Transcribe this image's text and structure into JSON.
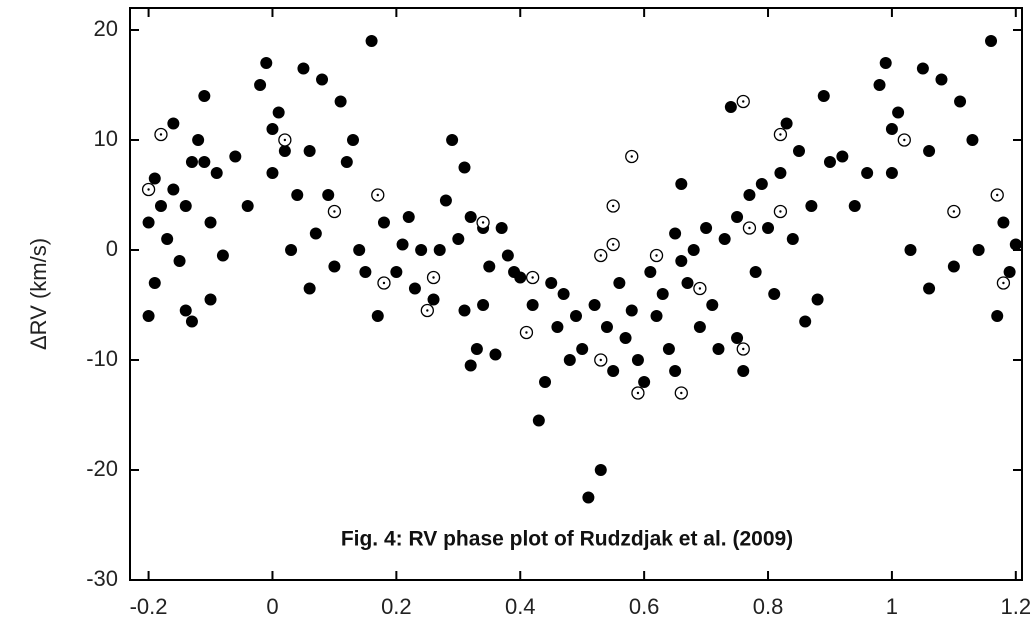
{
  "chart_data": {
    "type": "scatter",
    "annotation": "Fig. 4: RV phase plot of Rudzdjak et al. (2009)",
    "y_label": "ΔRV (km/s)",
    "xlim": [
      -0.23,
      1.21
    ],
    "ylim": [
      -30,
      22
    ],
    "xticks": [
      -0.2,
      0,
      0.2,
      0.4,
      0.6,
      0.8,
      1,
      1.2
    ],
    "yticks": [
      -30,
      -20,
      -10,
      0,
      10,
      20
    ],
    "series": [
      {
        "marker": "filled",
        "color": "#000000",
        "x": [
          -0.2,
          -0.2,
          -0.19,
          -0.19,
          -0.18,
          -0.17,
          -0.16,
          -0.16,
          -0.15,
          -0.14,
          -0.14,
          -0.13,
          -0.13,
          -0.12,
          -0.11,
          -0.11,
          -0.1,
          -0.1,
          -0.09,
          -0.08,
          -0.06,
          -0.04,
          -0.02,
          -0.01,
          0,
          0,
          0.01,
          0.02,
          0.03,
          0.04,
          0.05,
          0.06,
          0.06,
          0.07,
          0.08,
          0.09,
          0.1,
          0.11,
          0.12,
          0.13,
          0.14,
          0.15,
          0.16,
          0.17,
          0.17,
          0.18,
          0.2,
          0.21,
          0.22,
          0.23,
          0.24,
          0.26,
          0.27,
          0.28,
          0.29,
          0.3,
          0.31,
          0.31,
          0.32,
          0.32,
          0.33,
          0.34,
          0.34,
          0.35,
          0.36,
          0.37,
          0.38,
          0.39,
          0.4,
          0.42,
          0.43,
          0.44,
          0.45,
          0.46,
          0.47,
          0.48,
          0.49,
          0.5,
          0.51,
          0.52,
          0.53,
          0.54,
          0.55,
          0.56,
          0.57,
          0.58,
          0.59,
          0.6,
          0.61,
          0.62,
          0.63,
          0.64,
          0.65,
          0.65,
          0.66,
          0.66,
          0.67,
          0.68,
          0.69,
          0.7,
          0.71,
          0.72,
          0.73,
          0.74,
          0.75,
          0.75,
          0.76,
          0.77,
          0.78,
          0.79,
          0.8,
          0.81,
          0.82,
          0.83,
          0.84,
          0.85,
          0.86,
          0.87,
          0.88,
          0.89,
          0.9,
          0.92,
          0.94,
          0.96,
          0.98,
          0.99,
          1,
          1,
          1.01,
          1.03,
          1.05,
          1.06,
          1.06,
          1.08,
          1.1,
          1.11,
          1.13,
          1.14,
          1.16,
          1.17,
          1.17,
          1.18,
          1.19,
          1.2
        ],
        "values": [
          -6,
          2.5,
          -3,
          6.5,
          4,
          1,
          5.5,
          11.5,
          -1,
          4,
          -5.5,
          -6.5,
          8,
          10,
          14,
          8,
          -4.5,
          2.5,
          7,
          -0.5,
          8.5,
          4,
          15,
          17,
          11,
          7,
          12.5,
          9,
          0,
          5,
          16.5,
          9,
          -3.5,
          1.5,
          15.5,
          5,
          -1.5,
          13.5,
          8,
          10,
          0,
          -2,
          19,
          5,
          -6,
          2.5,
          -2,
          0.5,
          3,
          -3.5,
          0,
          -4.5,
          0,
          4.5,
          10,
          1,
          7.5,
          -5.5,
          3,
          -10.5,
          -9,
          -5,
          2,
          -1.5,
          -9.5,
          2,
          -0.5,
          -2,
          -2.5,
          -5,
          -15.5,
          -12,
          -3,
          -7,
          -4,
          -10,
          -6,
          -9,
          -22.5,
          -5,
          -20,
          -7,
          -11,
          -3,
          -8,
          -5.5,
          -10,
          -12,
          -2,
          -6,
          -4,
          -9,
          1.5,
          -11,
          6,
          -1,
          -3,
          0,
          -7,
          2,
          -5,
          -9,
          1,
          13,
          3,
          -8,
          -11,
          5,
          -2,
          6,
          2,
          -4,
          7,
          11.5,
          1,
          9,
          -6.5,
          4,
          -4.5,
          14,
          8,
          8.5,
          4,
          7,
          15,
          17,
          11,
          7,
          12.5,
          0,
          16.5,
          9,
          -3.5,
          15.5,
          -1.5,
          13.5,
          10,
          0,
          19,
          5,
          -6,
          2.5,
          -2,
          0.5
        ]
      },
      {
        "marker": "open",
        "color": "#000000",
        "x": [
          -0.2,
          -0.18,
          0.02,
          0.1,
          0.17,
          0.18,
          0.25,
          0.26,
          0.34,
          0.41,
          0.42,
          0.53,
          0.53,
          0.55,
          0.55,
          0.58,
          0.59,
          0.62,
          0.66,
          0.69,
          0.76,
          0.76,
          0.77,
          0.82,
          0.82,
          1.02,
          1.1,
          1.17,
          1.18
        ],
        "values": [
          5.5,
          10.5,
          10,
          3.5,
          5,
          -3,
          -5.5,
          -2.5,
          2.5,
          -7.5,
          -2.5,
          -0.5,
          -10,
          4,
          0.5,
          8.5,
          -13,
          -0.5,
          -13,
          -3.5,
          13.5,
          -9,
          2,
          10.5,
          3.5,
          10,
          3.5,
          5,
          -3
        ]
      }
    ]
  }
}
